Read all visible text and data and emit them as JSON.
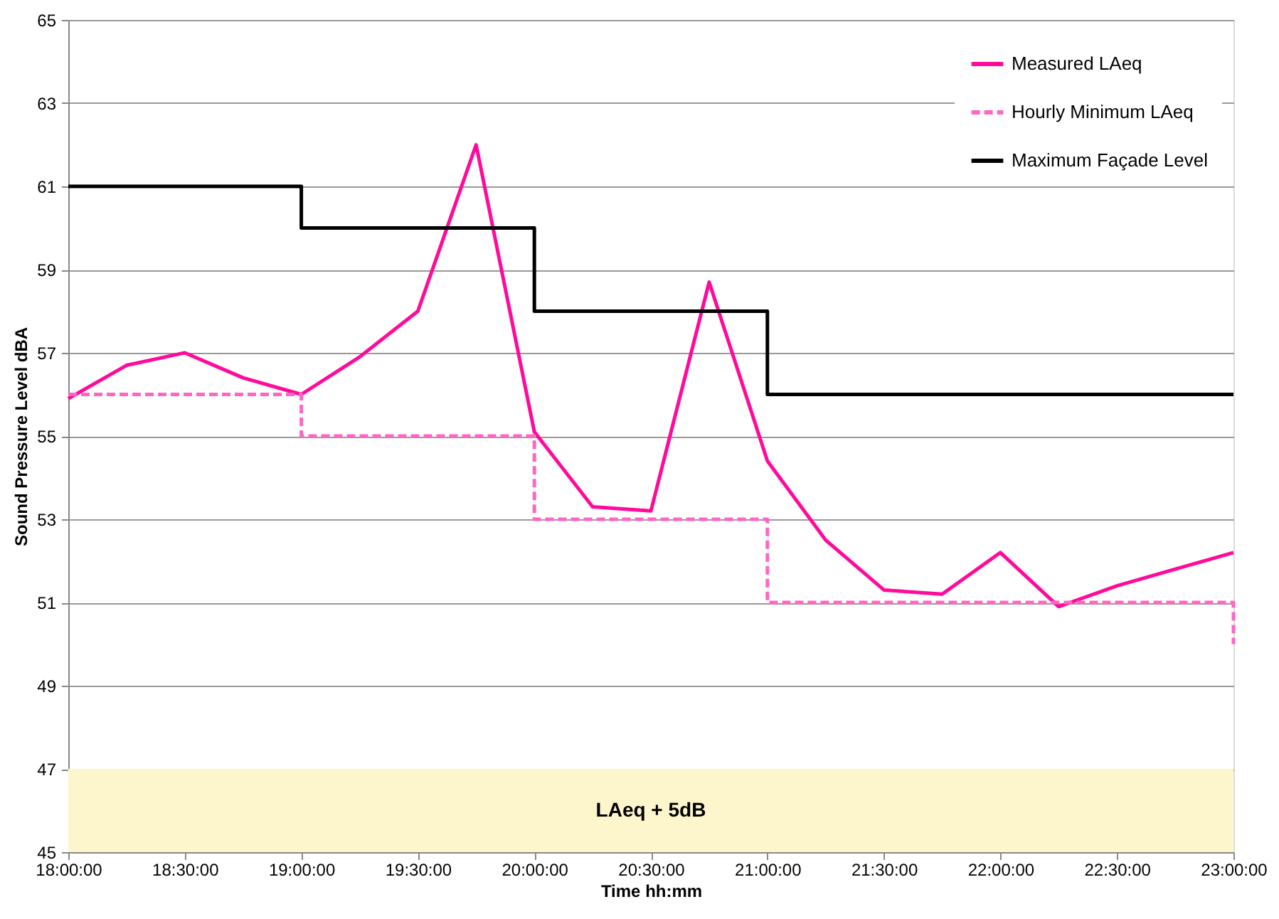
{
  "chart_data": {
    "type": "line",
    "xlabel": "Time hh:mm",
    "ylabel": "Sound Pressure Level dBA",
    "xlim": [
      18,
      23
    ],
    "xticks": [
      {
        "value": 18,
        "label": "18:00:00"
      },
      {
        "value": 18.5,
        "label": "18:30:00"
      },
      {
        "value": 19,
        "label": "19:00:00"
      },
      {
        "value": 19.5,
        "label": "19:30:00"
      },
      {
        "value": 20,
        "label": "20:00:00"
      },
      {
        "value": 20.5,
        "label": "20:30:00"
      },
      {
        "value": 21,
        "label": "21:00:00"
      },
      {
        "value": 21.5,
        "label": "21:30:00"
      },
      {
        "value": 22,
        "label": "22:00:00"
      },
      {
        "value": 22.5,
        "label": "22:30:00"
      },
      {
        "value": 23,
        "label": "23:00:00"
      }
    ],
    "ylim": [
      45,
      65
    ],
    "yticks": [
      45,
      47,
      49,
      51,
      53,
      55,
      57,
      59,
      61,
      63,
      65
    ],
    "grid": "y",
    "legend": "top right",
    "series": [
      {
        "name": "Measured LAeq",
        "type": "line",
        "color": "#ff0a9a",
        "line_style": "solid",
        "x": [
          18,
          18.25,
          18.5,
          18.75,
          19,
          19.25,
          19.5,
          19.75,
          20,
          20.25,
          20.5,
          20.75,
          21,
          21.25,
          21.5,
          21.75,
          22,
          22.25,
          22.5,
          22.75,
          23
        ],
        "values": [
          55.9,
          56.7,
          57.0,
          56.4,
          56.0,
          56.9,
          58.0,
          62.0,
          55.1,
          53.3,
          53.2,
          58.7,
          54.4,
          52.5,
          51.3,
          51.2,
          52.2,
          50.9,
          51.4,
          51.8,
          52.2
        ]
      },
      {
        "name": "Hourly Minimum LAeq",
        "type": "step",
        "color": "#ff66c4",
        "line_style": "dashed",
        "x": [
          18,
          19,
          20,
          21,
          22,
          23
        ],
        "values": [
          56,
          55,
          53,
          51,
          51,
          50
        ]
      },
      {
        "name": "Maximum Façade Level",
        "type": "step",
        "color": "#000000",
        "line_style": "solid",
        "x": [
          18,
          19,
          20,
          21,
          22,
          23
        ],
        "values": [
          61,
          60,
          58,
          56,
          56,
          56
        ]
      }
    ],
    "bands": [
      {
        "axis": "y",
        "from": 45,
        "to": 47,
        "label": "LAeq + 5dB",
        "color": "#fdf5cc"
      }
    ]
  }
}
